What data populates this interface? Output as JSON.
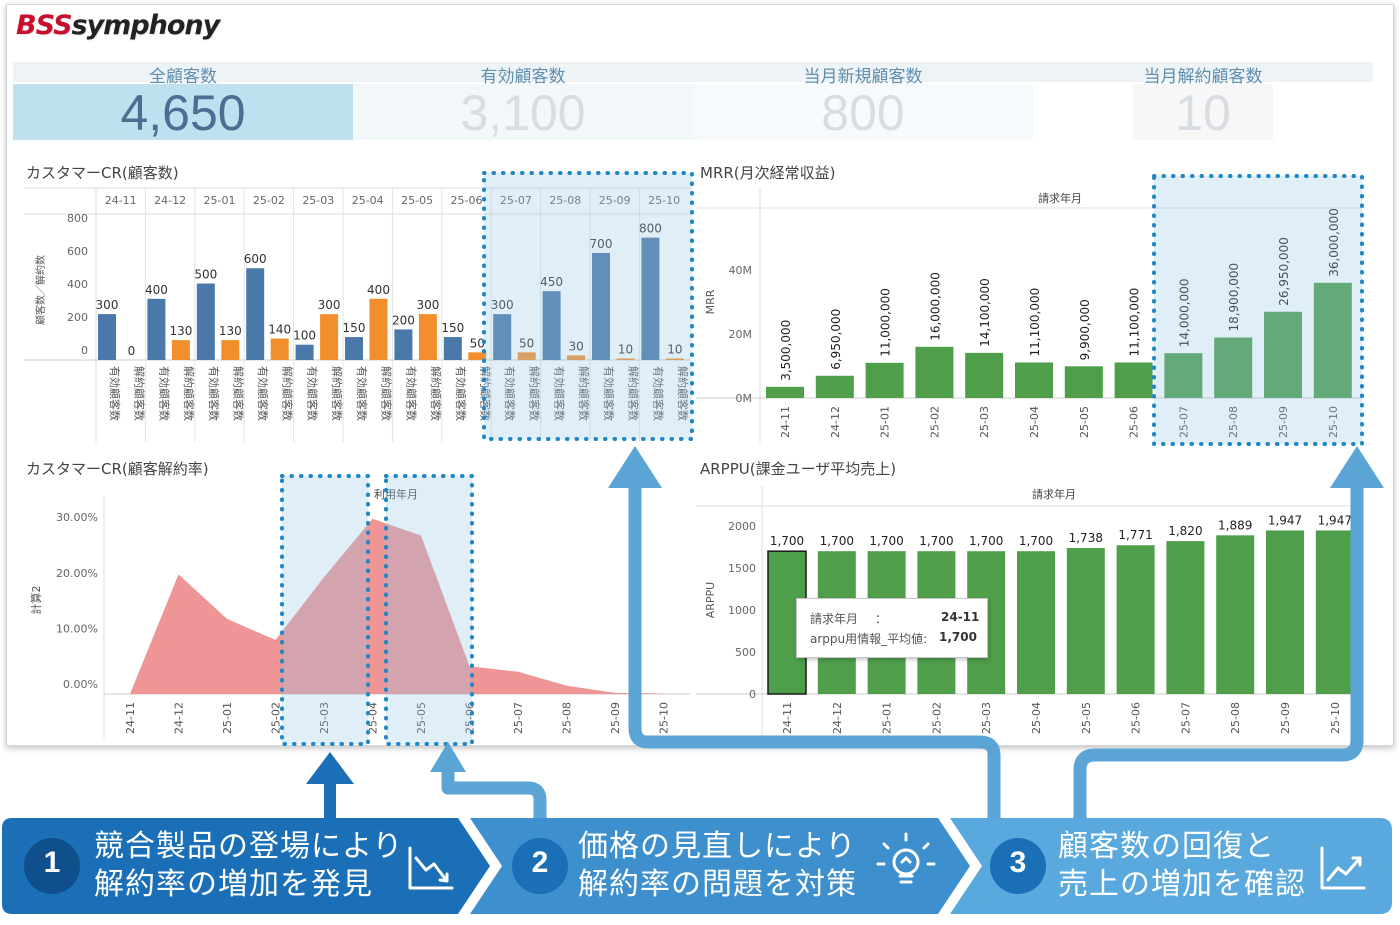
{
  "logo": {
    "brand": "BSS",
    "rest": "symphony"
  },
  "kpis": [
    {
      "label": "全顧客数",
      "value": "4,650"
    },
    {
      "label": "有効顧客数",
      "value": "3,100"
    },
    {
      "label": "当月新規顧客数",
      "value": "800"
    },
    {
      "label": "当月解約顧客数",
      "value": "10"
    }
  ],
  "panels": {
    "cr_count": {
      "title": "カスタマーCR(顧客数)",
      "ylabel": "顧客数／解約数",
      "months": [
        "24-11",
        "24-12",
        "25-01",
        "25-02",
        "25-03",
        "25-04",
        "25-05",
        "25-06",
        "25-07",
        "25-08",
        "25-09",
        "25-10"
      ],
      "series_labels": [
        "有効顧客数",
        "解約顧客数"
      ],
      "yticks": [
        "800",
        "600",
        "400",
        "200",
        "0"
      ]
    },
    "mrr": {
      "title": "MRR(月次経常収益)",
      "xheader": "請求年月",
      "ylabel": "MRR",
      "yticks": [
        "40M",
        "20M",
        "0M"
      ]
    },
    "churn": {
      "title": "カスタマーCR(顧客解約率)",
      "xheader": "利用年月",
      "ylabel": "計算2",
      "yticks": [
        "30.00%",
        "20.00%",
        "10.00%",
        "0.00%"
      ]
    },
    "arppu": {
      "title": "ARPPU(課金ユーザ平均売上)",
      "xheader": "請求年月",
      "ylabel": "ARPPU",
      "yticks": [
        "2000",
        "1500",
        "1000",
        "500",
        "0"
      ],
      "tooltip": {
        "k1": "請求年月",
        "sep": "：",
        "v1": "24-11",
        "k2": "arppu用情報_平均値:",
        "v2": "1,700"
      }
    }
  },
  "chart_data": [
    {
      "type": "bar",
      "title": "カスタマーCR(顧客数)",
      "ylabel": "顧客数／解約数",
      "categories": [
        "24-11",
        "24-12",
        "25-01",
        "25-02",
        "25-03",
        "25-04",
        "25-05",
        "25-06",
        "25-07",
        "25-08",
        "25-09",
        "25-10"
      ],
      "series": [
        {
          "name": "有効顧客数",
          "color": "#4a78a8",
          "values": [
            300,
            400,
            500,
            600,
            100,
            150,
            200,
            150,
            300,
            450,
            700,
            800
          ],
          "labels": [
            "300",
            "400",
            "500",
            "600",
            "100",
            "150",
            "200",
            "150",
            "300",
            "450",
            "700",
            "800"
          ]
        },
        {
          "name": "解約顧客数",
          "color": "#f28e2b",
          "values": [
            0,
            130,
            130,
            140,
            300,
            400,
            300,
            50,
            50,
            30,
            10,
            10
          ],
          "labels": [
            "0",
            "130",
            "130",
            "140",
            "300",
            "400",
            "300",
            "50",
            "50",
            "30",
            "10",
            "10"
          ]
        }
      ],
      "ylim": [
        0,
        850
      ]
    },
    {
      "type": "bar",
      "title": "MRR(月次経常収益)",
      "ylabel": "MRR",
      "categories": [
        "24-11",
        "24-12",
        "25-01",
        "25-02",
        "25-03",
        "25-04",
        "25-05",
        "25-06",
        "25-07",
        "25-08",
        "25-09",
        "25-10"
      ],
      "values": [
        3500000,
        6950000,
        11000000,
        16000000,
        14100000,
        11100000,
        9900000,
        11100000,
        14000000,
        18900000,
        26950000,
        36000000
      ],
      "labels": [
        "3,500,000",
        "6,950,000",
        "11,000,000",
        "16,000,000",
        "14,100,000",
        "11,100,000",
        "9,900,000",
        "11,100,000",
        "14,000,000",
        "18,900,000",
        "26,950,000",
        "36,000,000"
      ],
      "ylim": [
        0,
        45000000
      ]
    },
    {
      "type": "area",
      "title": "カスタマーCR(顧客解約率)",
      "ylabel": "計算2",
      "x": [
        "24-11",
        "24-12",
        "25-01",
        "25-02",
        "25-03",
        "25-04",
        "25-05",
        "25-06",
        "25-07",
        "25-08",
        "25-09",
        "25-10"
      ],
      "values": [
        0.0,
        21.5,
        13.5,
        9.7,
        21.0,
        31.5,
        28.5,
        5.0,
        4.0,
        1.5,
        0.2,
        0.1
      ],
      "ylim": [
        0,
        32
      ]
    },
    {
      "type": "bar",
      "title": "ARPPU(課金ユーザ平均売上)",
      "ylabel": "ARPPU",
      "categories": [
        "24-11",
        "24-12",
        "25-01",
        "25-02",
        "25-03",
        "25-04",
        "25-05",
        "25-06",
        "25-07",
        "25-08",
        "25-09",
        "25-10"
      ],
      "values": [
        1700,
        1700,
        1700,
        1700,
        1700,
        1700,
        1738,
        1771,
        1820,
        1889,
        1947,
        1947
      ],
      "labels": [
        "1,700",
        "1,700",
        "1,700",
        "1,700",
        "1,700",
        "1,700",
        "1,738",
        "1,771",
        "1,820",
        "1,889",
        "1,947",
        "1,947"
      ],
      "ylim": [
        0,
        2100
      ]
    }
  ],
  "steps": [
    {
      "num": "1",
      "line1": "競合製品の登場により",
      "line2": "解約率の増加を発見",
      "icon": "trend-down-icon"
    },
    {
      "num": "2",
      "line1": "価格の見直しにより",
      "line2": "解約率の問題を対策",
      "icon": "lightbulb-icon"
    },
    {
      "num": "3",
      "line1": "顧客数の回復と",
      "line2": "売上の増加を確認",
      "icon": "trend-up-icon"
    }
  ]
}
